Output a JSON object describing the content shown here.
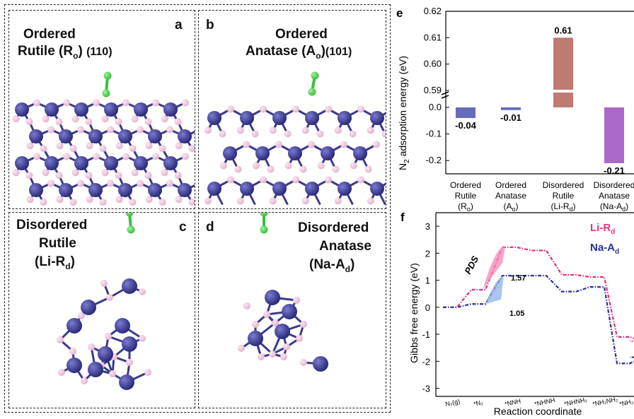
{
  "panels": {
    "a": {
      "letter": "a",
      "line1": "Ordered",
      "line2": "Rutile (R",
      "sub": "o",
      "suffix": ")",
      "facet": "(110)"
    },
    "b": {
      "letter": "b",
      "line1": "Ordered",
      "line2": "Anatase (A",
      "sub": "o",
      "suffix": ")",
      "facet": "(101)"
    },
    "c": {
      "letter": "c",
      "line1": "Disordered",
      "line2": "Rutile",
      "line3": "(Li-R",
      "sub": "d",
      "suffix": ")"
    },
    "d": {
      "letter": "d",
      "line1": "Disordered",
      "line2": "Anatase",
      "line3": "(Na-A",
      "sub": "d",
      "suffix": ")"
    }
  },
  "colors": {
    "ti_atom": "#2b2a7a",
    "o_atom": "#e3b3cf",
    "n_atom": "#3bbf3b",
    "bar_red": "#b5615b",
    "bar_purple": "#9b4fc0",
    "bar_blue": "#4a52b0",
    "li_rd": "#e2307e",
    "na_ad": "#2a2f9a"
  },
  "chart_data": [
    {
      "type": "bar",
      "panel_label": "e",
      "categories": [
        [
          "Ordered",
          "Rutile",
          "(R",
          "o",
          ")"
        ],
        [
          "Ordered",
          "Anatase",
          "(A",
          "o",
          ")"
        ],
        [
          "Disordered",
          "Rutile",
          "(Li-R",
          "d",
          ")"
        ],
        [
          "Disordered",
          "Anatase",
          "(Na-A",
          "d",
          ")"
        ]
      ],
      "values": [
        -0.04,
        -0.01,
        0.61,
        -0.21
      ],
      "value_labels": [
        "-0.04",
        "-0.01",
        "0.61",
        "-0.21"
      ],
      "ylabel": {
        "prefix": "N",
        "sub": "2",
        "suffix": " adsorption energy (eV)"
      },
      "yticks_upper": [
        "0.59",
        "0.60",
        "0.61",
        "0.62"
      ],
      "yticks_lower": [
        "0.0",
        "-0.1",
        "-0.2"
      ],
      "ylim_upper": [
        0.59,
        0.62
      ],
      "ylim_lower": [
        -0.25,
        0.0
      ],
      "broken_axis": true,
      "grid": false
    },
    {
      "type": "line",
      "panel_label": "f",
      "categories": [
        "N₂(g)",
        "*N₂",
        "*NNH",
        "*NHNH",
        "*NHNH₂",
        "*NH₂NH₂",
        "*NH₂",
        "*NH₃"
      ],
      "series": [
        {
          "name": "Li-R",
          "sub": "d",
          "values": [
            0,
            0.65,
            2.22,
            2.1,
            1.2,
            1.12,
            -1.1,
            -1.25
          ]
        },
        {
          "name": "Na-A",
          "sub": "d",
          "values": [
            0,
            0.12,
            1.17,
            1.17,
            0.58,
            0.75,
            -2.08,
            -1.85
          ]
        }
      ],
      "annotations": [
        "PDS",
        "1.57",
        "1.05"
      ],
      "xlabel": "Reaction coordinate",
      "ylabel": "Gibbs free energy (eV)",
      "yticks": [
        "-3",
        "-2",
        "-1",
        "0",
        "1",
        "2",
        "3"
      ],
      "ylim": [
        -3.3,
        3.5
      ],
      "grid": false,
      "legend": "top-right"
    }
  ]
}
